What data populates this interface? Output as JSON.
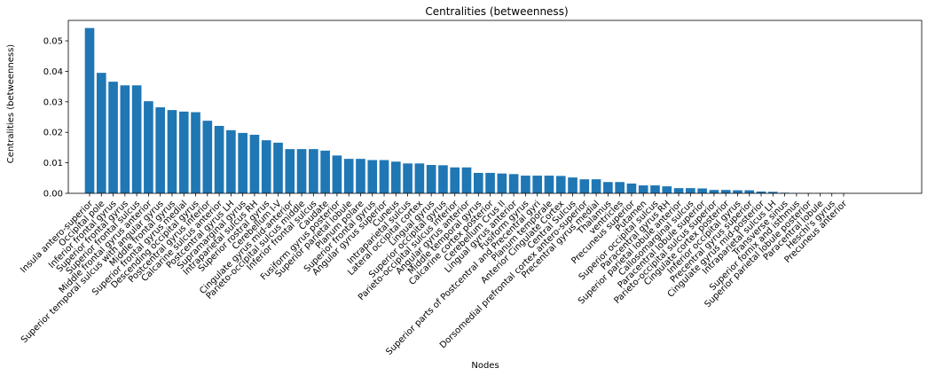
{
  "chart_data": {
    "type": "bar",
    "title": "Centralities (betweenness)",
    "xlabel": "Nodes",
    "ylabel": "Centralities (betweenness)",
    "ylim": [
      0,
      0.0567
    ],
    "yticks": [
      "0.00",
      "0.01",
      "0.02",
      "0.03",
      "0.04",
      "0.05"
    ],
    "grid": false,
    "bar_color": "#1f77b4",
    "categories": [
      "Insula antero-superior",
      "Occipital pole",
      "Inferior frontal gyrus",
      "Superior frontal gyrus",
      "Superior frontal sulcus",
      "Middle frontal gyrus anterior",
      "Superior temporal sulcus with angular gyrus",
      "Middle frontal gyrus",
      "Superior frontal gyrus medial",
      "Descending occipital gyrus",
      "Postcentral gyrus inferior",
      "Calcarine sulcus anterior",
      "Postcentral gyrus LH",
      "Supramarginal gyrus",
      "Intraparietal sulcus RH",
      "Superior rostral gyrus",
      "Cerebellum I-V",
      "Cingulate gyrus mid-anterior",
      "Parieto-occipital sulcus middle",
      "Inferior frontal sulcus",
      "Caudate",
      "Fusiform gyrus posterior",
      "Superior parietal lobule",
      "Planum polare",
      "Superior frontal gyrus",
      "Angular gyrus superior",
      "Cuneus",
      "Intraparietal sulcus",
      "Lateral occipital cortex",
      "Lingual gyrus",
      "Superior occipital gyrus",
      "Parieto-occipital sulcus inferior",
      "Angular gyrus anterior",
      "Middle temporal gyrus",
      "Calcarine cortex posterior",
      "Cerebellum Crus II",
      "Lingual gyrus anterior",
      "Fusiform gyrus",
      "Superior parts of Postcentral and Precentral gyri",
      "Planum temporale",
      "Anterior Cingulate Cortex",
      "Central Sulcus",
      "Dorsomedial prefrontal cortex antero-superior",
      "Precentral gyrus medial",
      "Thalamus",
      "ventricles",
      "Precuneus superior",
      "Putamen",
      "Superior occipital sulcus",
      "Paracentral gyrus RH",
      "Superior parietal lobule anterior",
      "Callosomarginal sulcus",
      "Paracentral lobule superior",
      "Parieto-occipital sulcus superior",
      "Cingulate cortex posterior",
      "Inferior occipital gyrus",
      "Precentral gyrus superior",
      "Cingulate gyrus mid-posterior",
      "Intraparietal sulcus LH",
      "Transverse sinus",
      "Superior fornix and isthmus",
      "Superior parietal lobule posterior",
      "Paracentral lobule",
      "Heschl's gyrus",
      "Precuneus anterior"
    ],
    "values": [
      0.0542,
      0.0395,
      0.0366,
      0.0354,
      0.0354,
      0.0302,
      0.0282,
      0.0273,
      0.0268,
      0.0266,
      0.0238,
      0.0221,
      0.0207,
      0.0198,
      0.0192,
      0.0174,
      0.0166,
      0.0145,
      0.0145,
      0.0145,
      0.014,
      0.0124,
      0.0113,
      0.0113,
      0.0109,
      0.0109,
      0.0104,
      0.0098,
      0.0098,
      0.0093,
      0.0092,
      0.0085,
      0.0085,
      0.0067,
      0.0067,
      0.0065,
      0.0063,
      0.0058,
      0.0058,
      0.0058,
      0.0057,
      0.0052,
      0.0046,
      0.0046,
      0.0037,
      0.0037,
      0.0032,
      0.0026,
      0.0026,
      0.0023,
      0.0017,
      0.0017,
      0.0016,
      0.0011,
      0.0011,
      0.001,
      0.001,
      0.0006,
      0.0005,
      0.0002,
      0.0001,
      0.0001,
      0.0001,
      0.0001,
      0.0001
    ]
  }
}
